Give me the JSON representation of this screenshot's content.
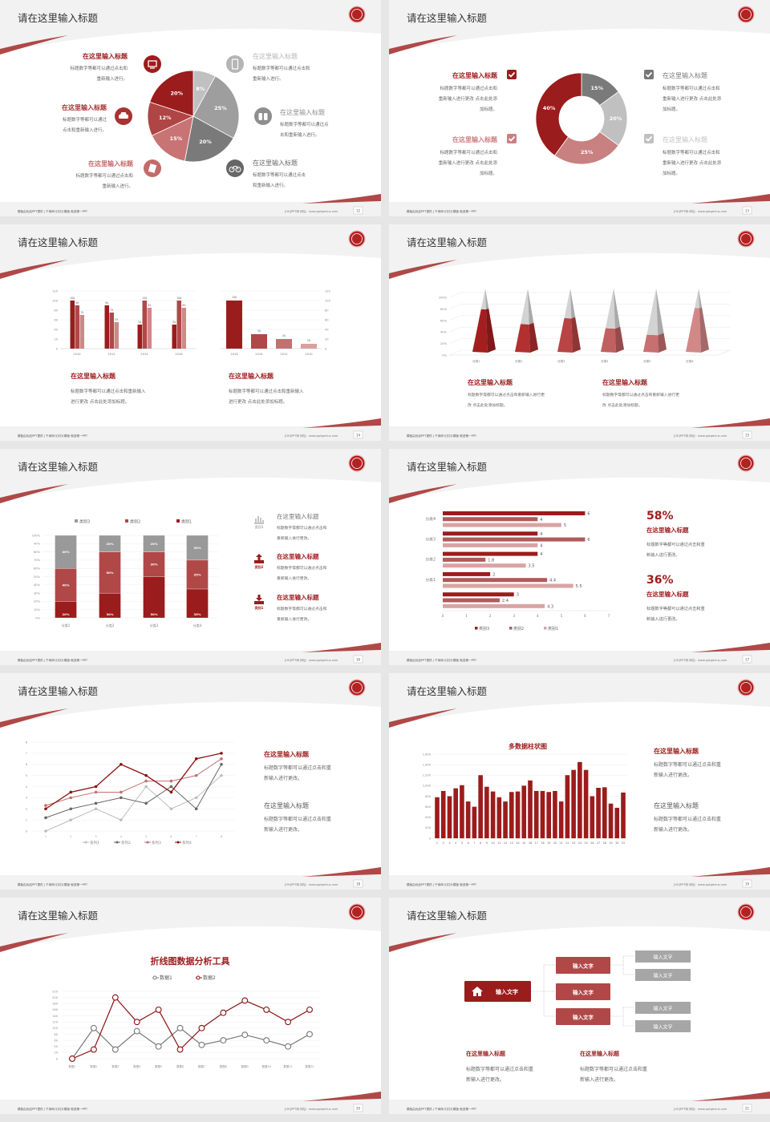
{
  "colors": {
    "dark_red": "#9b1c1c",
    "red": "#b04848",
    "pink": "#c97878",
    "light_pink": "#dba3a3",
    "dark_gray": "#777777",
    "gray": "#9e9e9e",
    "light_gray": "#c0c0c0",
    "title_text": "#333333",
    "body_text": "#666666"
  },
  "footer": {
    "left": "模板由优品PPT提供 | 千库网·幻灯片模板·就选第一PPT",
    "right": "[OK]PPT网  网址：www.pptgenius.com"
  },
  "slides": [
    {
      "type": "pie",
      "title": "请在这里输入标题",
      "page": "12",
      "chart": 0,
      "left_items": [
        {
          "title": "在这里输入标题",
          "lines": [
            "标题数字等都可以通过点击和",
            "重新输入进行。"
          ],
          "icon": "monitor-icon",
          "color": "#9b1c1c"
        },
        {
          "title": "在这里输入标题",
          "lines": [
            "标题数字等都可以通过",
            "点击和重新输入进行。"
          ],
          "icon": "car-icon",
          "color": "#a83232"
        },
        {
          "title": "在这里输入标题",
          "lines": [
            "标题数字等都可以通过点击和",
            "重新输入进行。"
          ],
          "icon": "book-icon",
          "color": "#c46a6a"
        }
      ],
      "right_items": [
        {
          "title": "在这里输入标题",
          "lines": [
            "标题数字等都可以通过点击和",
            "重新输入进行。"
          ],
          "icon": "phone-icon",
          "color": "#b5b5b5"
        },
        {
          "title": "在这里输入标题",
          "lines": [
            "标题数字等都可以通过点",
            "击和重新输入进行。"
          ],
          "icon": "binoculars-icon",
          "color": "#8e8e8e"
        },
        {
          "title": "在这里输入标题",
          "lines": [
            "标题数字等都可以通过点击",
            "和重新输入进行。"
          ],
          "icon": "bicycle-icon",
          "color": "#666666"
        }
      ]
    },
    {
      "type": "donut",
      "title": "请在这里输入标题",
      "page": "13",
      "chart": 1,
      "left_items": [
        {
          "title": "在这里输入标题",
          "lines": [
            "标题数字等都可以通过点击和",
            "重新输入进行更改 点击此处添",
            "加标题。"
          ],
          "icon": "checkbox-icon",
          "color": "#9b1c1c"
        },
        {
          "title": "在这里输入标题",
          "lines": [
            "标题数字等都可以通过点击和",
            "重新输入进行更改 点击此处添",
            "加标题。"
          ],
          "icon": "checkbox-icon",
          "color": "#c98080"
        }
      ],
      "right_items": [
        {
          "title": "在这里输入标题",
          "lines": [
            "标题数字等都可以通过点击和",
            "重新输入进行更改 点击此处添",
            "加标题。"
          ],
          "icon": "checkbox-icon",
          "color": "#777777"
        },
        {
          "title": "在这里输入标题",
          "lines": [
            "标题数字等都可以通过点击和",
            "重新输入进行更改 点击此处添",
            "加标题。"
          ],
          "icon": "checkbox-icon",
          "color": "#c0c0c0"
        }
      ]
    },
    {
      "type": "twobars",
      "title": "请在这里输入标题",
      "page": "14",
      "charts": [
        2,
        3
      ],
      "items": [
        {
          "title": "在这里输入标题",
          "lines": [
            "标题数字等都可以通过点击和重新输入",
            "进行更改 点击此处添加标题。"
          ]
        },
        {
          "title": "在这里输入标题",
          "lines": [
            "标题数字等都可以通过点击和重新输入",
            "进行更改 点击此处添加标题。"
          ]
        }
      ]
    },
    {
      "type": "pyramid",
      "title": "请在这里输入标题",
      "page": "15",
      "chart": 4,
      "items": [
        {
          "title": "在这里输入标题",
          "lines": [
            "标题数字等都可以通过点击和重新输入进行更",
            "改 点击此处添加标题。"
          ]
        },
        {
          "title": "在这里输入标题",
          "lines": [
            "标题数字等都可以通过点击和重新输入进行更",
            "改 点击此处添加标题。"
          ]
        }
      ]
    },
    {
      "type": "stacked",
      "title": "请在这里输入标题",
      "page": "16",
      "chart": 5,
      "items": [
        {
          "label": "类别3",
          "title": "在这里输入标题",
          "lines": [
            "标题数字等都可以通过点击和",
            "重新输入进行更改。"
          ],
          "icon": "bar-chart-icon",
          "color": "#888888"
        },
        {
          "label": "类别2",
          "title": "在这里输入标题",
          "lines": [
            "标题数字等都可以通过点击和",
            "重新输入进行更改。"
          ],
          "icon": "upload-icon",
          "color": "#9b1c1c"
        },
        {
          "label": "类别1",
          "title": "在这里输入标题",
          "lines": [
            "标题数字等都可以通过点击和",
            "重新输入进行更改。"
          ],
          "icon": "download-icon",
          "color": "#9b1c1c"
        }
      ]
    },
    {
      "type": "hbar",
      "title": "请在这里输入标题",
      "page": "17",
      "chart": 6,
      "stats": [
        {
          "value": "58%",
          "title": "在这里输入标题",
          "lines": [
            "标题数字等都可以通过点击和重",
            "新输入进行更改。"
          ]
        },
        {
          "value": "36%",
          "title": "在这里输入标题",
          "lines": [
            "标题数字等都可以通过点击和重",
            "新输入进行更改。"
          ]
        }
      ]
    },
    {
      "type": "line",
      "title": "请在这里输入标题",
      "page": "18",
      "chart": 7,
      "items": [
        {
          "title": "在这里输入标题",
          "lines": [
            "标题数字等都可以通过点击和重",
            "新输入进行更改。"
          ],
          "color": "#9b1c1c"
        },
        {
          "title": "在这里输入标题",
          "lines": [
            "标题数字等都可以通过点击和重",
            "新输入进行更改。"
          ],
          "color": "#555555"
        }
      ]
    },
    {
      "type": "multibar",
      "title": "请在这里输入标题",
      "page": "19",
      "chart": 8,
      "items": [
        {
          "title": "在这里输入标题",
          "lines": [
            "标题数字等都可以通过点击和重",
            "新输入进行更改。"
          ],
          "color": "#9b1c1c"
        },
        {
          "title": "在这里输入标题",
          "lines": [
            "标题数字等都可以通过点击和重",
            "新输入进行更改。"
          ],
          "color": "#555555"
        }
      ]
    },
    {
      "type": "line2",
      "title": "请在这里输入标题",
      "page": "20",
      "chart": 9
    },
    {
      "type": "tree",
      "title": "请在这里输入标题",
      "page": "21",
      "root": {
        "label": "输入文字",
        "icon": "home-icon"
      },
      "mids": [
        "输入文字",
        "输入文字",
        "输入文字"
      ],
      "leaves": [
        "输入文字",
        "输入文字",
        "输入文字",
        "输入文字"
      ],
      "items": [
        {
          "title": "在这里输入标题",
          "lines": [
            "标题数字等都可以通过点击和重",
            "新输入进行更改。"
          ]
        },
        {
          "title": "在这里输入标题",
          "lines": [
            "标题数字等都可以通过点击和重",
            "新输入进行更改。"
          ]
        }
      ]
    }
  ],
  "chart_data": [
    {
      "type": "pie",
      "values": [
        8,
        25,
        20,
        15,
        12,
        20
      ],
      "data_labels": [
        "8%",
        "25%",
        "20%",
        "15%",
        "12%",
        "20%"
      ],
      "colors": [
        "#c0c0c0",
        "#9e9e9e",
        "#7a7a7a",
        "#c87474",
        "#b04545",
        "#9b1c1c"
      ]
    },
    {
      "type": "pie",
      "values": [
        15,
        20,
        25,
        40
      ],
      "data_labels": [
        "15%",
        "20%",
        "25%",
        "40%"
      ],
      "colors": [
        "#7a7a7a",
        "#c0c0c0",
        "#c98080",
        "#9b1c1c"
      ]
    },
    {
      "type": "bar",
      "categories": [
        "2010",
        "2012",
        "2014",
        "2016"
      ],
      "series": [
        {
          "values": [
            100,
            90,
            50,
            50
          ]
        },
        {
          "values": [
            90,
            75,
            100,
            100
          ]
        },
        {
          "values": [
            70,
            55,
            85,
            85
          ]
        }
      ],
      "colors": [
        "#9b1c1c",
        "#b04848",
        "#cf8888"
      ],
      "ylim": [
        0,
        120
      ],
      "ytick_step": 20,
      "grid": true
    },
    {
      "type": "bar",
      "categories": [
        "2016",
        "2014",
        "2012",
        "2010"
      ],
      "values": [
        100,
        30,
        20,
        10
      ],
      "colors": [
        "#9b1c1c",
        "#b04848",
        "#c47070",
        "#d9a0a0"
      ],
      "ylim": [
        0,
        120
      ],
      "ytick_step": 20,
      "yaxis_side": "right",
      "grid": true
    },
    {
      "type": "bar",
      "style": "3d-pyramid",
      "categories": [
        "分类1",
        "分类2",
        "分类3",
        "分类4",
        "分类5",
        "分类6"
      ],
      "values": [
        72,
        47,
        57,
        40,
        29,
        74
      ],
      "unit": "%",
      "ylim": [
        0,
        100
      ],
      "ytick_step": 20,
      "colors": [
        "#a31f1f",
        "#b33030",
        "#b84444",
        "#c06060",
        "#c87070",
        "#d38888"
      ],
      "grid": true
    },
    {
      "type": "bar",
      "stacked": true,
      "categories": [
        "分类1",
        "分类2",
        "分类3",
        "分类4"
      ],
      "series": [
        {
          "name": "类别1",
          "values": [
            20,
            30,
            50,
            35
          ]
        },
        {
          "name": "类别2",
          "values": [
            40,
            50,
            30,
            35
          ]
        },
        {
          "name": "类别3",
          "values": [
            40,
            20,
            20,
            30
          ]
        }
      ],
      "colors": [
        "#9b1c1c",
        "#b04848",
        "#999999"
      ],
      "unit": "%",
      "ylim": [
        0,
        100
      ],
      "ytick_step": 10,
      "legend": "top",
      "grid": true
    },
    {
      "type": "bar",
      "orientation": "horizontal",
      "categories": [
        "分类4",
        "分类3",
        "分类2",
        "分类1",
        ""
      ],
      "series": [
        {
          "name": "类别3",
          "values": [
            6,
            4,
            4,
            2,
            3
          ]
        },
        {
          "name": "类别2",
          "values": [
            4,
            6,
            1.8,
            4.4,
            2.4
          ]
        },
        {
          "name": "类别1",
          "values": [
            5,
            4,
            3.5,
            5.5,
            4.3
          ]
        }
      ],
      "colors": [
        "#9b1c1c",
        "#b05a5a",
        "#d9a3a3"
      ],
      "xlim": [
        0,
        7
      ],
      "xtick_step": 1,
      "legend": "bottom"
    },
    {
      "type": "line",
      "x": [
        1,
        2,
        3,
        4,
        5,
        6,
        7,
        8
      ],
      "series": [
        {
          "name": "系列1",
          "values": [
            0,
            1,
            2,
            1,
            4,
            2,
            3,
            5
          ]
        },
        {
          "name": "系列2",
          "values": [
            1.2,
            2,
            2.5,
            3,
            2.5,
            4,
            2,
            6
          ]
        },
        {
          "name": "系列3",
          "values": [
            2.3,
            3,
            3.5,
            3.5,
            4.5,
            4.5,
            5,
            6.5
          ]
        },
        {
          "name": "系列4",
          "values": [
            2,
            3.5,
            4,
            6,
            5,
            3.5,
            6.5,
            7
          ]
        }
      ],
      "colors": [
        "#bdbdbd",
        "#666666",
        "#c47070",
        "#8b1010"
      ],
      "ylim": [
        0,
        8
      ],
      "ytick_step": 1,
      "legend": "bottom",
      "grid": true
    },
    {
      "type": "bar",
      "title": "多数据柱状图",
      "categories": [
        "1",
        "2",
        "3",
        "4",
        "5",
        "6",
        "7",
        "8",
        "9",
        "10",
        "11",
        "12",
        "13",
        "14",
        "15",
        "16",
        "17",
        "18",
        "19",
        "20",
        "21",
        "22",
        "23",
        "24",
        "25",
        "26",
        "27",
        "28",
        "29",
        "30",
        "31"
      ],
      "values": [
        780,
        900,
        800,
        950,
        1010,
        700,
        600,
        1200,
        980,
        890,
        780,
        700,
        880,
        890,
        1000,
        1100,
        900,
        900,
        880,
        900,
        700,
        1200,
        1300,
        1450,
        1300,
        800,
        960,
        970,
        660,
        580,
        870
      ],
      "color": "#9b1c1c",
      "ylim": [
        0,
        1600
      ],
      "ytick_step": 200,
      "grid": true
    },
    {
      "type": "line",
      "title": "折线图数据分析工具",
      "categories": [
        "数据1",
        "数据2",
        "数据3",
        "数据4",
        "数据5",
        "数据6",
        "数据7",
        "数据8",
        "数据9",
        "数据10",
        "数据11",
        "数据12"
      ],
      "series": [
        {
          "name": "数据1",
          "values": [
            0,
            100,
            30,
            90,
            40,
            100,
            45,
            60,
            78,
            60,
            40,
            80
          ]
        },
        {
          "name": "数据2",
          "values": [
            0,
            30,
            200,
            120,
            160,
            30,
            100,
            150,
            190,
            160,
            120,
            160
          ]
        }
      ],
      "colors": [
        "#777777",
        "#8b1010"
      ],
      "ylim": [
        0,
        220
      ],
      "ytick_step": 20,
      "legend": "top",
      "grid": true
    }
  ]
}
